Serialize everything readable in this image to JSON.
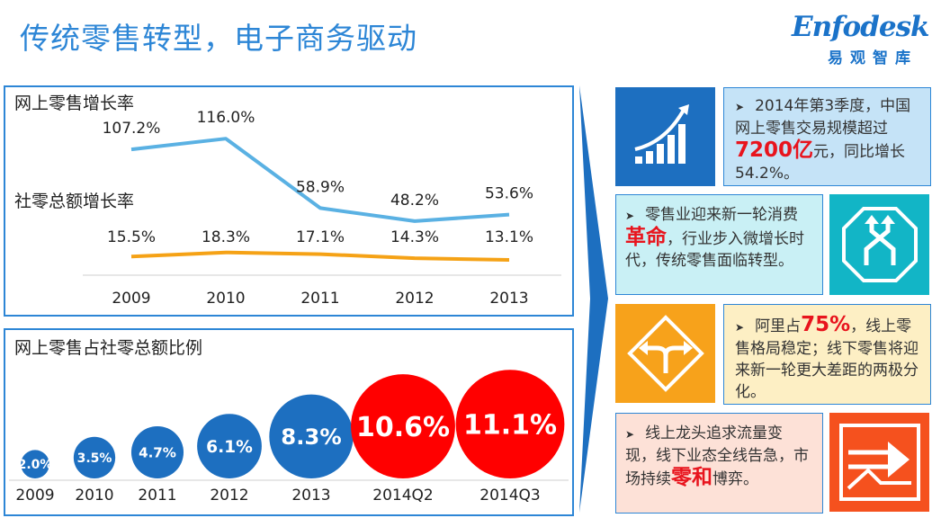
{
  "header": {
    "title": "传统零售转型，电子商务驱动",
    "logo_en": "Enfodesk",
    "logo_cn": "易观智库"
  },
  "chart_data": [
    {
      "type": "line",
      "title": "",
      "categories": [
        "2009",
        "2010",
        "2011",
        "2012",
        "2013"
      ],
      "series": [
        {
          "name": "网上零售增长率",
          "values": [
            107.2,
            116.0,
            58.9,
            48.2,
            53.6
          ],
          "labels": [
            "107.2%",
            "116.0%",
            "58.9%",
            "48.2%",
            "53.6%"
          ],
          "color": "#5ab1e3"
        },
        {
          "name": "社零总额增长率",
          "values": [
            15.5,
            18.3,
            17.1,
            14.3,
            13.1
          ],
          "labels": [
            "15.5%",
            "18.3%",
            "17.1%",
            "14.3%",
            "13.1%"
          ],
          "color": "#f5a216"
        }
      ],
      "grid": false,
      "legend": "inline-left"
    },
    {
      "type": "bubble",
      "title": "网上零售占社零总额比例",
      "categories": [
        "2009",
        "2010",
        "2011",
        "2012",
        "2013",
        "2014Q2",
        "2014Q3"
      ],
      "values": [
        2.0,
        3.5,
        4.7,
        6.1,
        8.3,
        10.6,
        11.1
      ],
      "labels": [
        "2.0%",
        "3.5%",
        "4.7%",
        "6.1%",
        "8.3%",
        "10.6%",
        "11.1%"
      ],
      "colors": [
        "#1d6fc0",
        "#1d6fc0",
        "#1d6fc0",
        "#1d6fc0",
        "#1d6fc0",
        "#ff0000",
        "#ff0000"
      ]
    }
  ],
  "cards": [
    {
      "bg": "#c5e3f7",
      "icon": "growth-chart-icon",
      "icon_bg": "#1d6fc0",
      "parts": [
        "2014年第3季度，中国网上零售交易规模超过",
        "7200亿",
        "元，同比增长54.2%。"
      ]
    },
    {
      "bg": "#c9f0f5",
      "icon": "merge-arrows-icon",
      "icon_bg": "#12b5c6",
      "parts": [
        "零售业迎来新一轮消费",
        "革命",
        "，行业步入微增长时代，传统零售面临转型。"
      ]
    },
    {
      "bg": "#fdefc4",
      "icon": "split-sign-icon",
      "icon_bg": "#f7a21b",
      "parts": [
        "阿里占",
        "75%",
        "，线上零售格局稳定；线下零售将迎来新一轮更大差距的两极分化。"
      ]
    },
    {
      "bg": "#fde1d7",
      "icon": "direction-arrow-icon",
      "icon_bg": "#f5511e",
      "parts": [
        "线上龙头追求流量变现，线下业态全线告急，市场持续",
        "零和",
        "博弈。"
      ]
    }
  ]
}
